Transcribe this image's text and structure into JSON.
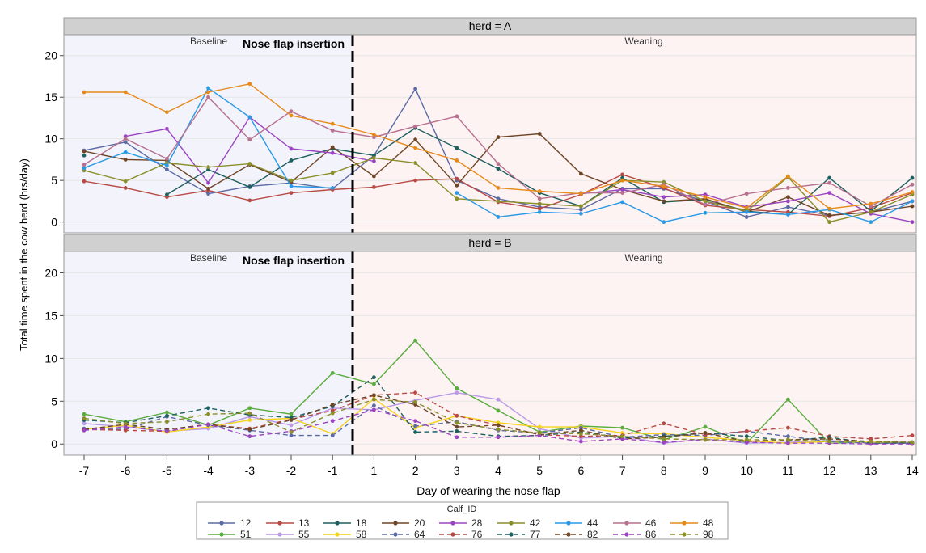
{
  "chart_data": {
    "type": "line",
    "xlabel": "Day of wearing the nose flap",
    "ylabel": "Total time spent in the cow herd (hrs/day)",
    "x_ticks": [
      -7,
      -6,
      -5,
      -4,
      -3,
      -2,
      -1,
      1,
      2,
      3,
      4,
      5,
      6,
      7,
      8,
      9,
      10,
      11,
      12,
      13,
      14
    ],
    "y_ticks": [
      0,
      5,
      10,
      15,
      20
    ],
    "ylim": [
      -1.3,
      22.5
    ],
    "grid": "horizontal",
    "legend": {
      "title": "Calf_ID",
      "position": "bottom-center"
    },
    "annotations": {
      "baseline": "Baseline",
      "insertion": "Nose flap insertion",
      "weaning": "Weaning"
    },
    "colors": {
      "baseline_bg": "#f3f3fb",
      "weaning_bg": "#fdf3f3",
      "panel_header_bg": "#d0d0d0",
      "grid": "#e6e6e6"
    },
    "series_styles": {
      "12": {
        "color": "#5b6aa3",
        "dashed": false
      },
      "13": {
        "color": "#b84a45",
        "dashed": false
      },
      "18": {
        "color": "#1e5f5f",
        "dashed": false
      },
      "20": {
        "color": "#6e4526",
        "dashed": false
      },
      "28": {
        "color": "#9b44c2",
        "dashed": false
      },
      "42": {
        "color": "#8a8f2a",
        "dashed": false
      },
      "44": {
        "color": "#2a9ae6",
        "dashed": false
      },
      "46": {
        "color": "#b7708e",
        "dashed": false
      },
      "48": {
        "color": "#e68a1a",
        "dashed": false
      },
      "51": {
        "color": "#5aac3f",
        "dashed": false
      },
      "55": {
        "color": "#b89ae6",
        "dashed": false
      },
      "58": {
        "color": "#f5d21c",
        "dashed": false
      },
      "64": {
        "color": "#5b6aa3",
        "dashed": true
      },
      "76": {
        "color": "#b84a45",
        "dashed": true
      },
      "77": {
        "color": "#1e5f5f",
        "dashed": true
      },
      "82": {
        "color": "#6e4526",
        "dashed": true
      },
      "86": {
        "color": "#9b44c2",
        "dashed": true
      },
      "98": {
        "color": "#8a8f2a",
        "dashed": true
      }
    },
    "panels": [
      {
        "title": "herd = A",
        "series": [
          {
            "name": "12",
            "values": [
              8.6,
              9.6,
              6.3,
              3.4,
              4.3,
              4.7,
              4.0,
              8.0,
              16.0,
              5.0,
              2.8,
              1.8,
              1.5,
              4.0,
              4.0,
              2.5,
              0.6,
              1.8,
              0.8,
              1.2,
              2.5
            ]
          },
          {
            "name": "13",
            "values": [
              4.9,
              4.1,
              3.0,
              3.8,
              2.6,
              3.5,
              3.9,
              4.2,
              5.0,
              5.2,
              2.4,
              1.6,
              3.3,
              5.7,
              4.1,
              2.0,
              1.5,
              1.2,
              0.7,
              1.7,
              3.5
            ]
          },
          {
            "name": "18",
            "values": [
              8.0,
              null,
              3.3,
              6.3,
              4.2,
              7.4,
              8.8,
              8.0,
              11.3,
              8.9,
              6.4,
              3.5,
              1.9,
              5.3,
              2.4,
              2.7,
              1.3,
              0.9,
              5.3,
              1.3,
              5.3
            ]
          },
          {
            "name": "20",
            "values": [
              8.5,
              7.5,
              7.4,
              4.0,
              6.9,
              4.8,
              9.0,
              5.5,
              9.9,
              4.4,
              10.2,
              10.6,
              5.8,
              3.9,
              2.5,
              2.8,
              1.2,
              3.0,
              0.8,
              1.2,
              1.9
            ]
          },
          {
            "name": "28",
            "values": [
              null,
              10.3,
              11.2,
              4.7,
              12.6,
              8.8,
              8.3,
              7.3,
              null,
              null,
              null,
              null,
              3.4,
              3.9,
              3.0,
              3.3,
              1.8,
              2.5,
              3.5,
              1.0,
              0.0
            ]
          },
          {
            "name": "42",
            "values": [
              6.2,
              4.9,
              7.1,
              6.6,
              7.0,
              5.0,
              5.9,
              7.7,
              7.1,
              2.8,
              2.5,
              2.2,
              1.9,
              5.0,
              4.8,
              2.5,
              1.3,
              5.4,
              0.0,
              1.2,
              3.3
            ]
          },
          {
            "name": "44",
            "values": [
              6.5,
              8.4,
              6.8,
              16.1,
              12.6,
              4.3,
              4.1,
              null,
              null,
              3.5,
              0.6,
              1.2,
              1.0,
              2.4,
              0.0,
              1.1,
              1.2,
              0.9,
              1.5,
              0.0,
              2.5
            ]
          },
          {
            "name": "46",
            "values": [
              6.9,
              10.0,
              7.6,
              15.0,
              9.9,
              13.3,
              11.0,
              10.2,
              11.5,
              12.7,
              7.0,
              2.8,
              3.5,
              3.5,
              4.5,
              2.1,
              3.4,
              4.1,
              4.7,
              1.9,
              4.5
            ]
          },
          {
            "name": "48",
            "values": [
              15.6,
              15.6,
              13.2,
              15.6,
              16.6,
              12.8,
              11.8,
              10.5,
              8.9,
              7.4,
              4.1,
              3.7,
              3.4,
              5.0,
              4.3,
              3.0,
              1.7,
              5.5,
              1.6,
              2.2,
              3.6
            ]
          }
        ]
      },
      {
        "title": "herd = B",
        "series": [
          {
            "name": "51",
            "values": [
              3.5,
              2.6,
              3.7,
              2.2,
              4.2,
              3.5,
              8.3,
              7.0,
              12.1,
              6.5,
              3.9,
              1.4,
              2.1,
              1.9,
              0.5,
              2.0,
              0.1,
              5.2,
              0.1,
              0.2,
              0.2
            ]
          },
          {
            "name": "55",
            "values": [
              2.4,
              2.0,
              1.5,
              1.8,
              3.2,
              2.2,
              4.2,
              4.0,
              5.1,
              6.0,
              5.2,
              1.8,
              0.7,
              0.9,
              0.1,
              0.6,
              0.1,
              0.2,
              0.4,
              0.1,
              0.2
            ]
          },
          {
            "name": "58",
            "values": [
              1.7,
              2.2,
              1.4,
              2.0,
              2.8,
              3.0,
              1.2,
              5.3,
              1.9,
              3.3,
              2.5,
              2.0,
              2.0,
              1.3,
              1.2,
              0.8,
              0.4,
              0.1,
              0.3,
              0.2,
              0.1
            ]
          },
          {
            "name": "64",
            "values": [
              1.8,
              1.7,
              3.2,
              2.2,
              1.6,
              1.0,
              1.0,
              4.5,
              2.1,
              2.6,
              1.6,
              1.3,
              1.9,
              0.8,
              1.1,
              1.0,
              1.5,
              0.9,
              0.3,
              0.1,
              0.1
            ]
          },
          {
            "name": "76",
            "values": [
              1.7,
              1.6,
              1.5,
              2.3,
              1.8,
              2.9,
              3.9,
              5.7,
              6.0,
              3.3,
              2.2,
              1.1,
              0.9,
              1.0,
              2.4,
              1.1,
              1.5,
              1.9,
              0.9,
              0.6,
              1.0
            ]
          },
          {
            "name": "77",
            "values": [
              2.8,
              2.5,
              3.3,
              4.2,
              3.4,
              3.1,
              4.4,
              7.8,
              1.4,
              1.5,
              0.9,
              1.0,
              1.4,
              0.7,
              0.9,
              1.3,
              0.9,
              0.4,
              0.8,
              0.1,
              0.1
            ]
          },
          {
            "name": "82",
            "values": [
              1.7,
              2.3,
              1.7,
              2.3,
              1.7,
              2.8,
              4.6,
              5.7,
              4.6,
              2.0,
              2.2,
              1.1,
              1.6,
              0.6,
              0.8,
              1.3,
              0.3,
              0.5,
              0.6,
              0.3,
              0.2
            ]
          },
          {
            "name": "86",
            "values": [
              1.6,
              2.0,
              1.5,
              2.3,
              0.9,
              1.5,
              2.7,
              4.0,
              2.7,
              0.8,
              0.8,
              1.0,
              0.3,
              0.6,
              0.2,
              0.5,
              0.2,
              0.1,
              0.1,
              0.0,
              0.0
            ]
          },
          {
            "name": "98",
            "values": [
              3.0,
              2.4,
              2.6,
              3.5,
              3.6,
              1.4,
              3.6,
              5.2,
              4.9,
              2.5,
              1.7,
              1.3,
              1.2,
              0.9,
              0.6,
              0.5,
              0.5,
              0.5,
              0.3,
              0.3,
              0.2
            ]
          }
        ]
      }
    ],
    "legend_order": [
      "12",
      "13",
      "18",
      "20",
      "28",
      "42",
      "44",
      "46",
      "48",
      "51",
      "55",
      "58",
      "64",
      "76",
      "77",
      "82",
      "86",
      "98"
    ]
  }
}
